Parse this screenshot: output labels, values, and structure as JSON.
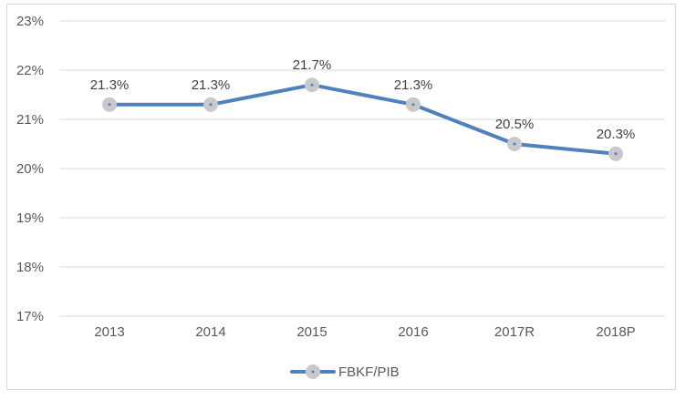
{
  "chart_data": {
    "type": "line",
    "title": "",
    "xlabel": "",
    "ylabel": "",
    "categories": [
      "2013",
      "2014",
      "2015",
      "2016",
      "2017R",
      "2018P"
    ],
    "series": [
      {
        "name": "FBKF/PIB",
        "values": [
          21.3,
          21.3,
          21.7,
          21.3,
          20.5,
          20.3
        ],
        "data_labels": [
          "21.3%",
          "21.3%",
          "21.7%",
          "21.3%",
          "20.5%",
          "20.3%"
        ]
      }
    ],
    "y_axis": {
      "min": 17,
      "max": 23,
      "tick_step": 1,
      "tick_labels": [
        "23%",
        "22%",
        "21%",
        "20%",
        "19%",
        "18%",
        "17%"
      ]
    },
    "grid": "horizontal",
    "legend": {
      "position": "bottom-center",
      "entries": [
        "FBKF/PIB"
      ]
    },
    "colors": {
      "line": "#4e81bd",
      "marker_fill": "#c9c9c9",
      "marker_dot": "#4e81bd",
      "gridline": "#d9d9d9",
      "frame_border": "#d9d9d9",
      "axis_text": "#595959",
      "data_label_text": "#404040",
      "legend_text": "#595959",
      "background": "#ffffff"
    }
  }
}
